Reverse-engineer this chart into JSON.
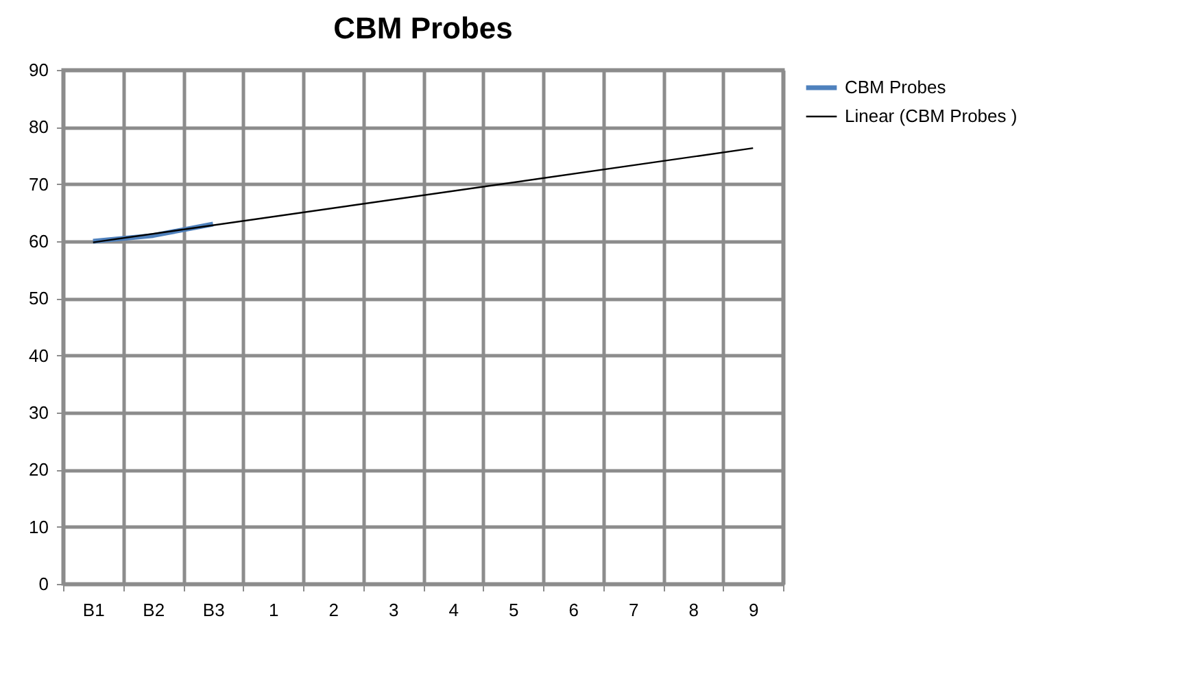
{
  "chart_data": {
    "type": "line",
    "title": "CBM Probes",
    "categories": [
      "B1",
      "B2",
      "B3",
      "1",
      "2",
      "3",
      "4",
      "5",
      "6",
      "7",
      "8",
      "9"
    ],
    "series": [
      {
        "name": "CBM Probes",
        "color": "#4f81bd",
        "values": [
          60,
          61,
          63,
          null,
          null,
          null,
          null,
          null,
          null,
          null,
          null,
          null
        ]
      },
      {
        "name": "Linear (CBM Probes )",
        "color": "#000000",
        "x": [
          "B1",
          "9"
        ],
        "values": [
          59.8,
          76.3
        ]
      }
    ],
    "ylim": [
      0,
      90
    ],
    "yticks": [
      0,
      10,
      20,
      30,
      40,
      50,
      60,
      70,
      80,
      90
    ],
    "grid": true,
    "legend": "right",
    "marker": "none"
  }
}
